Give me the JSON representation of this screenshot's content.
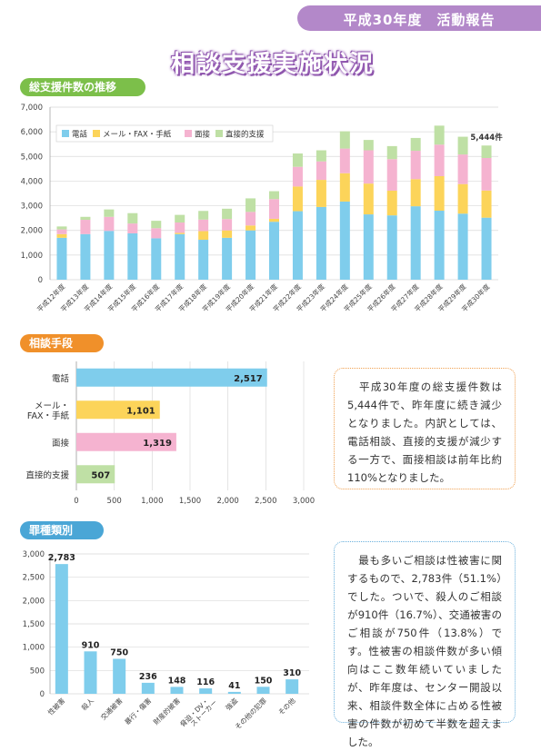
{
  "header": {
    "banner": "平成30年度　活動報告",
    "title": "相談支援実施状況"
  },
  "sections": {
    "total": "総支援件数の推移",
    "method": "相談手段",
    "crime": "罪種類別"
  },
  "colors": {
    "phone": "#7fcdec",
    "mail": "#fcd45a",
    "face": "#f5b3d0",
    "direct": "#bfe0a5"
  },
  "notes": {
    "method": "　平成30年度の総支援件数は5,444件で、昨年度に続き減少となりました。内訳としては、電話相談、直接的支援が減少する一方で、面接相談は前年比約110%となりました。",
    "crime": "　最も多いご相談は性被害に関するもので、2,783件（51.1%）でした。ついで、殺人のご相談が910件（16.7%）、交通被害のご相談が750件（13.8%）です。性被害の相談件数が多い傾向はここ数年続いていましたが、昨年度は、センター開設以来、相談件数全体に占める性被害の件数が初めて半数を超えました。"
  },
  "chart_data": [
    {
      "type": "bar",
      "stacked": true,
      "categories": [
        "平成12年度",
        "平成13年度",
        "平成14年度",
        "平成15年度",
        "平成16年度",
        "平成17年度",
        "平成18年度",
        "平成19年度",
        "平成20年度",
        "平成21年度",
        "平成22年度",
        "平成23年度",
        "平成24年度",
        "平成25年度",
        "平成26年度",
        "平成27年度",
        "平成28年度",
        "平成29年度",
        "平成30年度"
      ],
      "series": [
        {
          "name": "電話",
          "values": [
            1700,
            1850,
            1980,
            1880,
            1680,
            1850,
            1620,
            1700,
            2000,
            2350,
            2780,
            2950,
            3170,
            2650,
            2610,
            2980,
            2800,
            2680,
            2517
          ]
        },
        {
          "name": "メール・FAX・手紙",
          "values": [
            150,
            0,
            0,
            0,
            0,
            50,
            350,
            300,
            200,
            120,
            1000,
            1100,
            1150,
            1250,
            1000,
            1100,
            1400,
            1200,
            1101
          ]
        },
        {
          "name": "面接",
          "values": [
            190,
            580,
            570,
            400,
            410,
            420,
            470,
            460,
            550,
            800,
            800,
            750,
            1000,
            1350,
            1280,
            1150,
            1280,
            1200,
            1319
          ]
        },
        {
          "name": "直接的支援",
          "values": [
            120,
            120,
            300,
            420,
            300,
            310,
            350,
            420,
            550,
            320,
            540,
            450,
            700,
            420,
            530,
            520,
            770,
            720,
            507
          ]
        }
      ],
      "ylim": [
        0,
        7000
      ],
      "yticks": [
        "0",
        "1,000",
        "2,000",
        "3,000",
        "4,000",
        "5,000",
        "6,000",
        "7,000"
      ],
      "annotation": "5,444件",
      "legend": "top-left",
      "grid": true
    },
    {
      "type": "bar",
      "orientation": "horizontal",
      "categories": [
        "電話",
        "メール・FAX・手紙",
        "面接",
        "直接的支援"
      ],
      "category_lines": [
        [
          "電話"
        ],
        [
          "メール・",
          "FAX・手紙"
        ],
        [
          "面接"
        ],
        [
          "直接的支援"
        ]
      ],
      "values": [
        2517,
        1101,
        1319,
        507
      ],
      "labels": [
        "2,517",
        "1,101",
        "1,319",
        "507"
      ],
      "xlim": [
        0,
        3000
      ],
      "xticks": [
        "0",
        "500",
        "1,000",
        "1,500",
        "2,000",
        "2,500",
        "3,000"
      ],
      "grid": true
    },
    {
      "type": "bar",
      "categories": [
        "性被害",
        "殺人",
        "交通被害",
        "暴行・傷害",
        "財産的被害",
        "脅迫・DV・ストーカー",
        "強盗",
        "その他の犯罪",
        "その他"
      ],
      "category_lines": [
        [
          "性被害"
        ],
        [
          "殺人"
        ],
        [
          "交通被害"
        ],
        [
          "暴行・傷害"
        ],
        [
          "財産的被害"
        ],
        [
          "脅迫・DV・",
          "ストーカー"
        ],
        [
          "強盗"
        ],
        [
          "その他の犯罪"
        ],
        [
          "その他"
        ]
      ],
      "values": [
        2783,
        910,
        750,
        236,
        148,
        116,
        41,
        150,
        310
      ],
      "labels": [
        "2,783",
        "910",
        "750",
        "236",
        "148",
        "116",
        "41",
        "150",
        "310"
      ],
      "ylim": [
        0,
        3000
      ],
      "yticks": [
        "0",
        "500",
        "1,000",
        "1,500",
        "2,000",
        "2,500",
        "3,000"
      ],
      "grid": true
    }
  ]
}
